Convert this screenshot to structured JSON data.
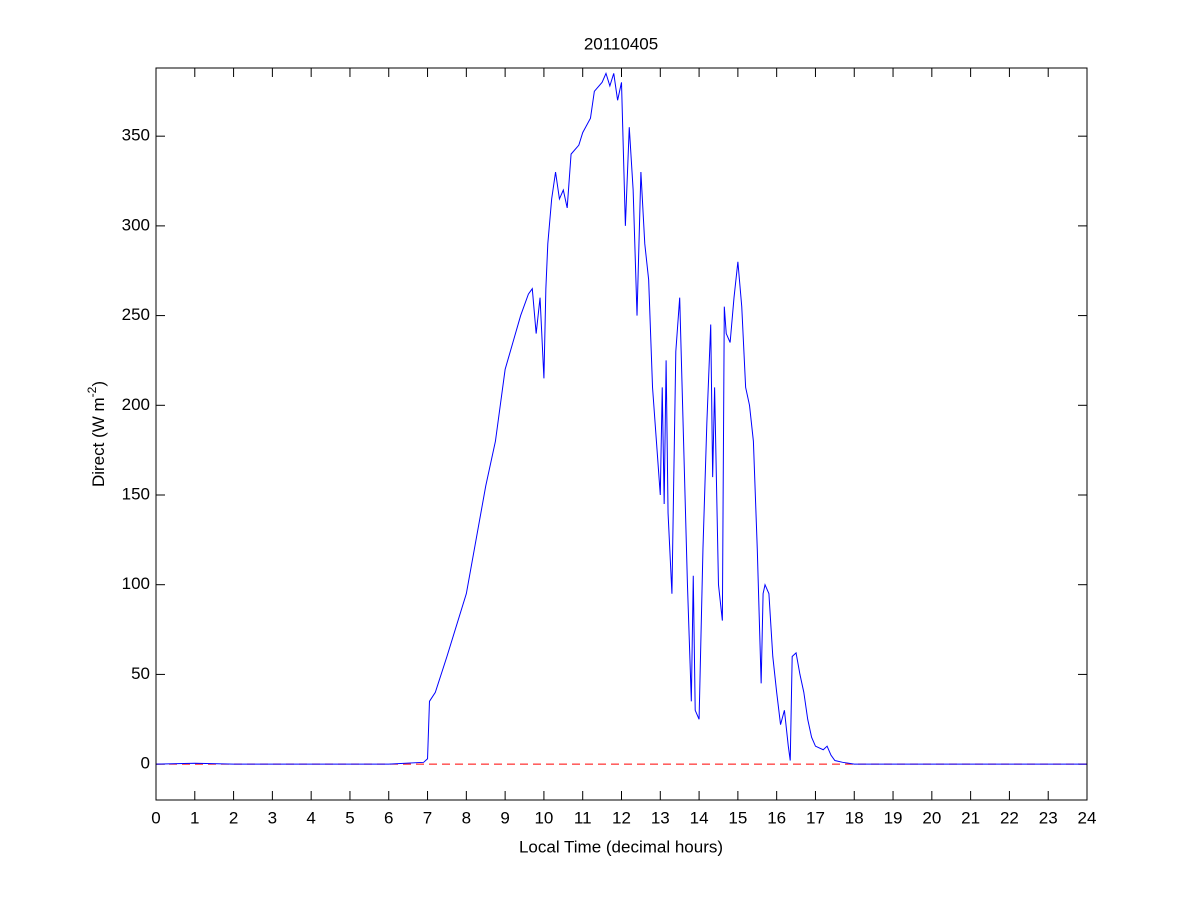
{
  "chart_data": {
    "type": "line",
    "title": "20110405",
    "xlabel": "Local Time (decimal hours)",
    "ylabel_parts": [
      "Direct (W m",
      "-2",
      ")"
    ],
    "x": [
      0,
      1,
      2,
      3,
      4,
      5,
      6,
      6.9,
      7.0,
      7.05,
      7.2,
      7.5,
      8,
      8.5,
      8.75,
      9,
      9.2,
      9.4,
      9.6,
      9.7,
      9.8,
      9.9,
      10.0,
      10.05,
      10.1,
      10.2,
      10.3,
      10.4,
      10.5,
      10.6,
      10.7,
      10.9,
      11.0,
      11.2,
      11.3,
      11.5,
      11.6,
      11.7,
      11.8,
      11.9,
      12.0,
      12.1,
      12.2,
      12.3,
      12.4,
      12.5,
      12.6,
      12.7,
      12.8,
      12.9,
      13.0,
      13.05,
      13.1,
      13.15,
      13.2,
      13.3,
      13.4,
      13.5,
      13.55,
      13.6,
      13.7,
      13.8,
      13.85,
      13.9,
      14.0,
      14.1,
      14.2,
      14.3,
      14.35,
      14.4,
      14.5,
      14.6,
      14.65,
      14.7,
      14.8,
      14.9,
      15.0,
      15.1,
      15.2,
      15.3,
      15.4,
      15.5,
      15.6,
      15.65,
      15.7,
      15.8,
      15.9,
      16.0,
      16.1,
      16.2,
      16.3,
      16.35,
      16.4,
      16.5,
      16.6,
      16.7,
      16.8,
      16.9,
      17.0,
      17.2,
      17.3,
      17.4,
      17.5,
      17.7,
      18,
      19,
      20,
      24
    ],
    "series": [
      {
        "color": "#0000ff",
        "values": [
          0,
          0.5,
          0,
          0,
          0,
          0,
          0,
          1,
          3,
          35,
          40,
          60,
          95,
          155,
          180,
          220,
          235,
          250,
          262,
          265,
          240,
          260,
          215,
          265,
          290,
          315,
          330,
          315,
          320,
          310,
          340,
          345,
          352,
          360,
          375,
          380,
          385,
          378,
          385,
          370,
          380,
          300,
          355,
          320,
          250,
          330,
          290,
          270,
          210,
          180,
          150,
          210,
          145,
          225,
          140,
          95,
          230,
          260,
          220,
          180,
          100,
          35,
          105,
          30,
          25,
          120,
          190,
          245,
          160,
          210,
          100,
          80,
          255,
          240,
          235,
          260,
          280,
          255,
          210,
          200,
          180,
          120,
          45,
          95,
          100,
          95,
          60,
          40,
          22,
          30,
          10,
          2,
          60,
          62,
          50,
          40,
          25,
          15,
          10,
          8,
          10,
          5,
          2,
          1,
          0,
          0,
          0,
          0
        ]
      }
    ],
    "reference_line": {
      "value": 0,
      "color": "#ff0000"
    },
    "xlim": [
      0,
      24
    ],
    "xticks": [
      0,
      1,
      2,
      3,
      4,
      5,
      6,
      7,
      8,
      9,
      10,
      11,
      12,
      13,
      14,
      15,
      16,
      17,
      18,
      19,
      20,
      21,
      22,
      23,
      24
    ],
    "ylim": [
      -20,
      388
    ],
    "yticks": [
      0,
      50,
      100,
      150,
      200,
      250,
      300,
      350
    ]
  }
}
